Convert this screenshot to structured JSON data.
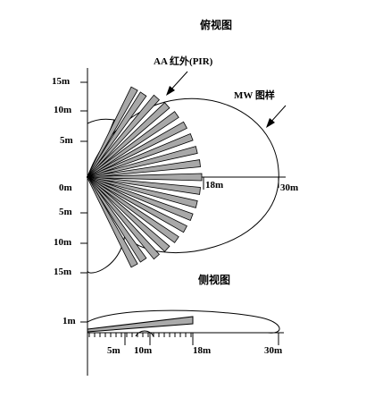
{
  "top_view": {
    "title": "俯视图",
    "pir_label": "AA 红外(PIR)",
    "mw_label": "MW 图样",
    "y_ticks": [
      "15m",
      "10m",
      "5m",
      "0m",
      "5m",
      "10m",
      "15m"
    ],
    "x_ticks": [
      "18m",
      "30m"
    ]
  },
  "side_view": {
    "title": "侧视图",
    "y_tick": "1m",
    "x_ticks": [
      "5m",
      "10m",
      "18m",
      "30m"
    ]
  }
}
